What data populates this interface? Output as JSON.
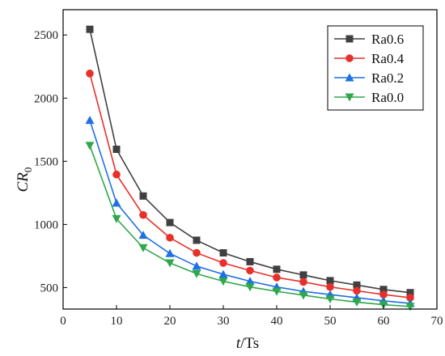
{
  "chart_data": {
    "type": "line",
    "x": [
      5,
      10,
      15,
      20,
      25,
      30,
      35,
      40,
      45,
      50,
      55,
      60,
      65
    ],
    "series": [
      {
        "name": "Ra0.6",
        "color": "#404040",
        "marker": "square",
        "values": [
          2545,
          1595,
          1225,
          1015,
          875,
          775,
          705,
          645,
          600,
          555,
          520,
          485,
          460
        ]
      },
      {
        "name": "Ra0.4",
        "color": "#e8302a",
        "marker": "circle",
        "values": [
          2195,
          1395,
          1075,
          895,
          775,
          695,
          635,
          580,
          545,
          505,
          475,
          445,
          420
        ]
      },
      {
        "name": "Ra0.2",
        "color": "#1f6fe5",
        "marker": "triangle-up",
        "values": [
          1825,
          1170,
          915,
          770,
          670,
          605,
          550,
          505,
          470,
          445,
          420,
          395,
          375
        ]
      },
      {
        "name": "Ra0.0",
        "color": "#2ea84a",
        "marker": "triangle-down",
        "values": [
          1625,
          1045,
          815,
          695,
          610,
          550,
          505,
          470,
          440,
          410,
          385,
          365,
          350
        ]
      }
    ],
    "xlim": [
      0,
      70
    ],
    "ylim": [
      330,
      2700
    ],
    "xticks": [
      0,
      10,
      20,
      30,
      40,
      50,
      60,
      70
    ],
    "yticks": [
      500,
      1000,
      1500,
      2000,
      2500
    ],
    "xlabel_main": "t",
    "xlabel_rest": "/Ts",
    "ylabel_main": "CR",
    "ylabel_sub": "0",
    "grid": false,
    "legend_position": "top-right"
  }
}
